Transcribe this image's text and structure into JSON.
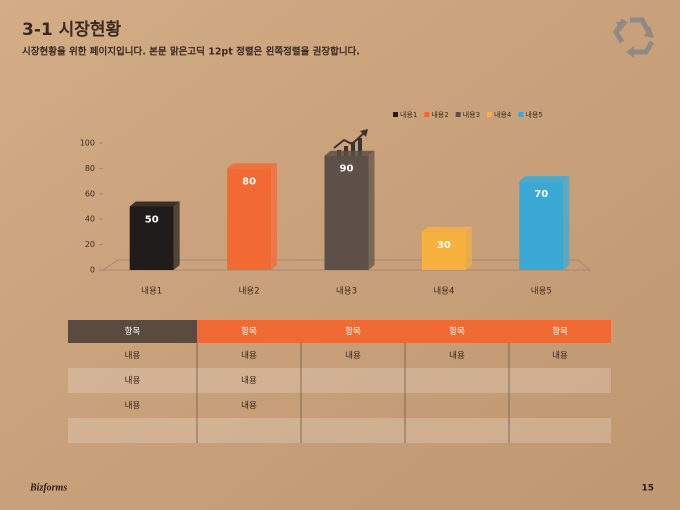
{
  "header": {
    "title": "3-1 시장현황",
    "subtitle": "시장현황을 위한 페이지입니다. 본문 맑은고딕 12pt 정렬은 왼쪽정렬을 권장합니다."
  },
  "chart_data": {
    "type": "bar3d",
    "categories": [
      "내용1",
      "내용2",
      "내용3",
      "내용4",
      "내용5"
    ],
    "values": [
      50,
      80,
      90,
      30,
      70
    ],
    "colors": [
      "#1f1c1b",
      "#f26a33",
      "#5c5048",
      "#f7b13f",
      "#3aa9d6"
    ],
    "ylim": [
      0,
      100
    ],
    "yticks": [
      0,
      20,
      40,
      60,
      80,
      100
    ],
    "legend": "top-right"
  },
  "table": {
    "header": [
      "항목",
      "항목",
      "항목",
      "항목",
      "항목"
    ],
    "rows": [
      [
        "내용",
        "내용",
        "내용",
        "내용",
        "내용"
      ],
      [
        "내용",
        "내용"
      ],
      [
        "내용",
        "내용"
      ],
      []
    ]
  },
  "footer": {
    "logo": "Bizforms",
    "page": "15"
  }
}
